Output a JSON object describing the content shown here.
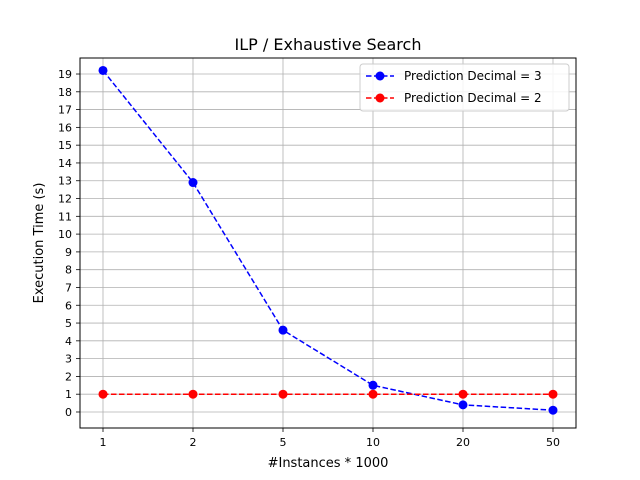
{
  "chart_data": {
    "type": "line",
    "title": "ILP / Exhaustive Search",
    "xlabel": "#Instances * 1000",
    "ylabel": "Execution Time (s)",
    "categories": [
      "1",
      "2",
      "5",
      "10",
      "20",
      "50"
    ],
    "yticks": [
      0,
      1,
      2,
      3,
      4,
      5,
      6,
      7,
      8,
      9,
      10,
      11,
      12,
      13,
      14,
      15,
      16,
      17,
      18,
      19
    ],
    "ylim": [
      -0.9,
      19.9
    ],
    "grid": true,
    "legend_position": "top-right",
    "series": [
      {
        "name": "Prediction Decimal = 3",
        "color": "#0000ff",
        "marker": "circle",
        "line_style": "dashed",
        "values": [
          19.2,
          12.9,
          4.6,
          1.5,
          0.4,
          0.1
        ]
      },
      {
        "name": "Prediction Decimal = 2",
        "color": "#ff0000",
        "marker": "circle",
        "line_style": "dashed",
        "values": [
          1.0,
          1.0,
          1.0,
          1.0,
          1.0,
          1.0
        ]
      }
    ]
  }
}
